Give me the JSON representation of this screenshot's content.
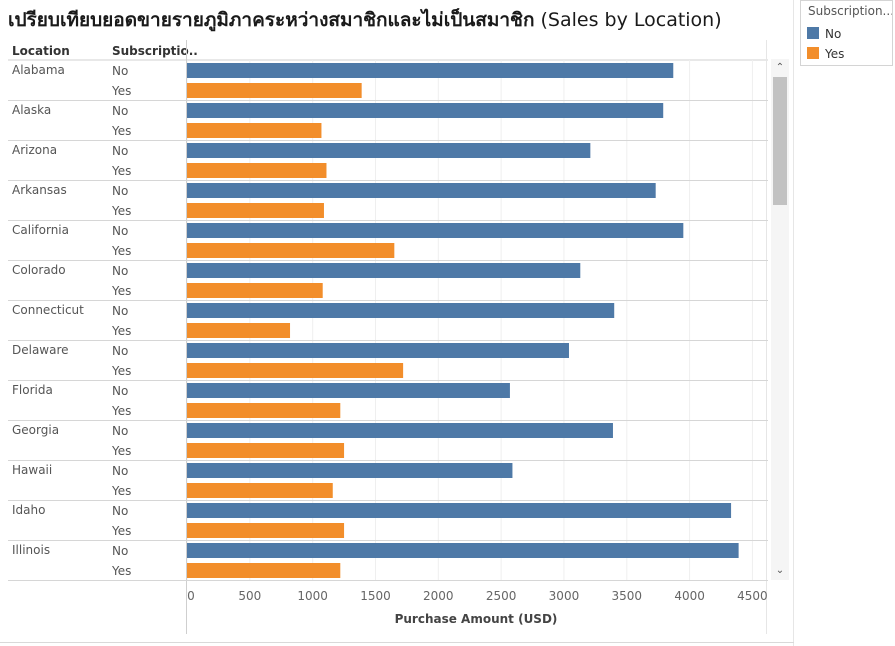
{
  "title": {
    "thai": "เปรียบเทียบยอดขายรายภูมิภาคระหว่างสมาชิกและไม่เป็นสมาชิก",
    "english": "(Sales by Location)"
  },
  "headers": {
    "location": "Location",
    "subscription": "Subscriptio.."
  },
  "legend": {
    "title": "Subscription...",
    "items": [
      {
        "label": "No",
        "color": "#4e79a7"
      },
      {
        "label": "Yes",
        "color": "#f28e2b"
      }
    ]
  },
  "chart_data": {
    "type": "bar",
    "orientation": "horizontal",
    "xlabel": "Purchase Amount (USD)",
    "xlim": [
      0,
      4600
    ],
    "xticks": [
      0,
      500,
      1000,
      1500,
      2000,
      2500,
      3000,
      3500,
      4000,
      4500
    ],
    "grid": true,
    "colors": {
      "No": "#4e79a7",
      "Yes": "#f28e2b"
    },
    "categories": [
      "Alabama",
      "Alaska",
      "Arizona",
      "Arkansas",
      "California",
      "Colorado",
      "Connecticut",
      "Delaware",
      "Florida",
      "Georgia",
      "Hawaii",
      "Idaho",
      "Illinois"
    ],
    "series": [
      {
        "name": "No",
        "values": [
          3870,
          3790,
          3210,
          3730,
          3950,
          3130,
          3400,
          3040,
          2570,
          3390,
          2590,
          4330,
          4390
        ]
      },
      {
        "name": "Yes",
        "values": [
          1390,
          1070,
          1110,
          1090,
          1650,
          1080,
          820,
          1720,
          1220,
          1250,
          1160,
          1250,
          1220
        ]
      }
    ]
  },
  "scroll": {
    "up": "▲",
    "down": "▼"
  }
}
